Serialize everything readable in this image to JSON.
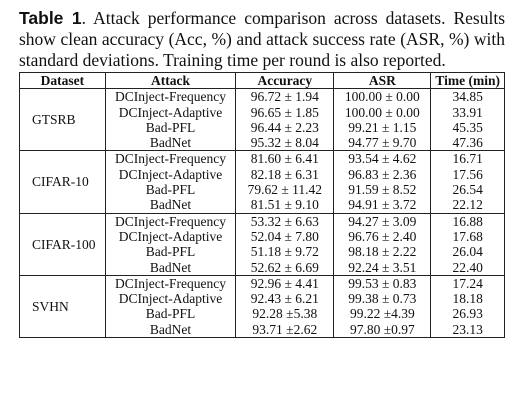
{
  "caption": {
    "label": "Table 1",
    "text": ". Attack performance comparison across datasets. Results show clean accuracy (Acc, %) and attack success rate (ASR, %) with standard deviations. Training time per round is also reported."
  },
  "table": {
    "headers": [
      "Dataset",
      "Attack",
      "Accuracy",
      "ASR",
      "Time (min)"
    ],
    "groups": [
      {
        "dataset": "GTSRB",
        "rows": [
          [
            "DCInject-Frequency",
            "96.72 ± 1.94",
            "100.00 ± 0.00",
            "34.85"
          ],
          [
            "DCInject-Adaptive",
            "96.65 ± 1.85",
            "100.00 ± 0.00",
            "33.91"
          ],
          [
            "Bad-PFL",
            "96.44 ± 2.23",
            "99.21 ± 1.15",
            "45.35"
          ],
          [
            "BadNet",
            "95.32 ± 8.04",
            "94.77 ± 9.70",
            "47.36"
          ]
        ]
      },
      {
        "dataset": "CIFAR-10",
        "rows": [
          [
            "DCInject-Frequency",
            "81.60 ± 6.41",
            "93.54 ± 4.62",
            "16.71"
          ],
          [
            "DCInject-Adaptive",
            "82.18 ± 6.31",
            "96.83 ± 2.36",
            "17.56"
          ],
          [
            "Bad-PFL",
            "79.62 ± 11.42",
            "91.59 ± 8.52",
            "26.54"
          ],
          [
            "BadNet",
            "81.51 ± 9.10",
            "94.91 ± 3.72",
            "22.12"
          ]
        ]
      },
      {
        "dataset": "CIFAR-100",
        "rows": [
          [
            "DCInject-Frequency",
            "53.32 ± 6.63",
            "94.27 ± 3.09",
            "16.88"
          ],
          [
            "DCInject-Adaptive",
            "52.04 ± 7.80",
            "96.76 ± 2.40",
            "17.68"
          ],
          [
            "Bad-PFL",
            "51.18 ± 9.72",
            "98.18 ± 2.22",
            "26.04"
          ],
          [
            "BadNet",
            "52.62 ± 6.69",
            "92.24 ± 3.51",
            "22.40"
          ]
        ]
      },
      {
        "dataset": "SVHN",
        "rows": [
          [
            "DCInject-Frequency",
            "92.96 ± 4.41",
            "99.53 ± 0.83",
            "17.24"
          ],
          [
            "DCInject-Adaptive",
            "92.43 ± 6.21",
            "99.38 ± 0.73",
            "18.18"
          ],
          [
            "Bad-PFL",
            "92.28 ±5.38",
            "99.22 ±4.39",
            "26.93"
          ],
          [
            "BadNet",
            "93.71 ±2.62",
            "97.80 ±0.97",
            "23.13"
          ]
        ]
      }
    ]
  }
}
